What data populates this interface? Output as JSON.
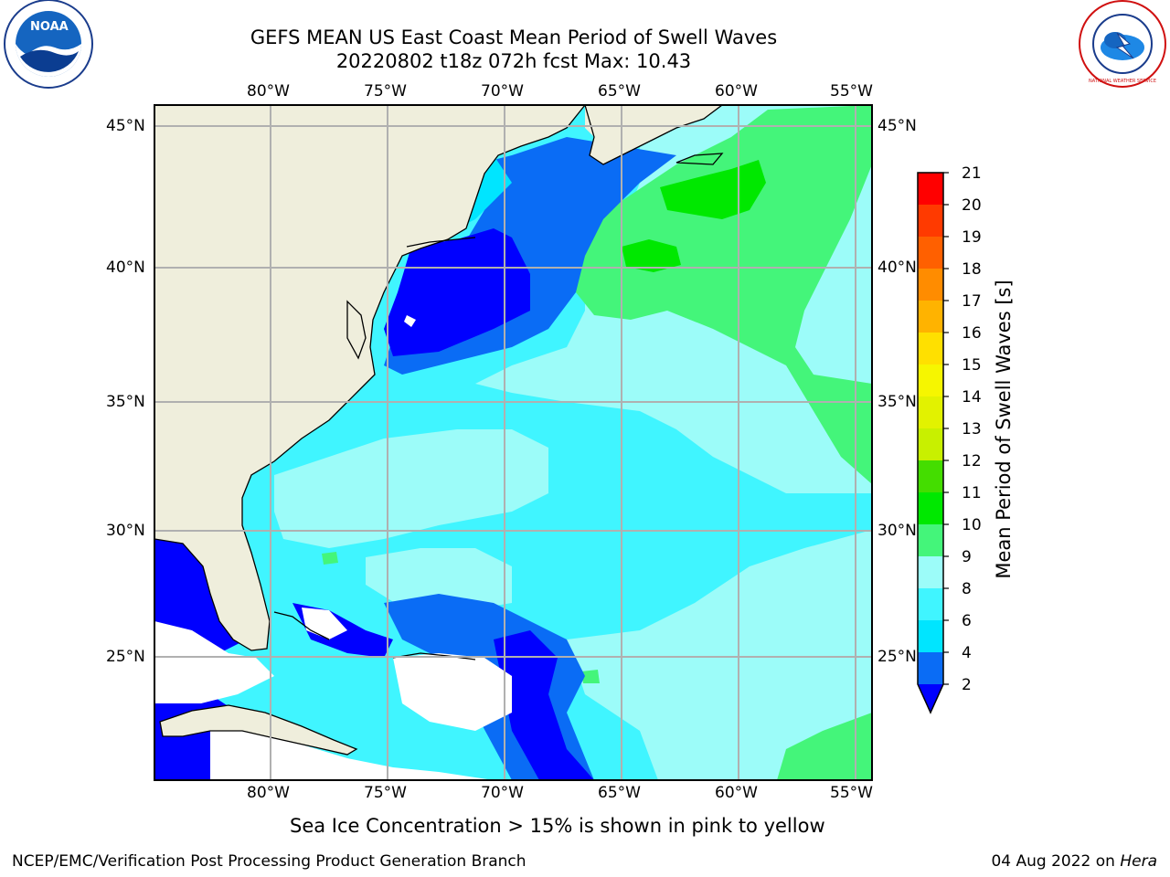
{
  "header": {
    "title_line1": "GEFS MEAN US East Coast Mean Period of Swell Waves",
    "title_line2": "20220802 t18z 072h fcst   Max: 10.43"
  },
  "logos": {
    "left": {
      "name": "noaa-logo",
      "text": "NOAA"
    },
    "right": {
      "name": "nws-logo",
      "text": "NATIONAL WEATHER SERVICE"
    }
  },
  "map": {
    "lon_labels": [
      "80°W",
      "75°W",
      "70°W",
      "65°W",
      "60°W",
      "55°W"
    ],
    "lat_labels": [
      "45°N",
      "40°N",
      "35°N",
      "30°N",
      "25°N"
    ],
    "colors": {
      "land": "#efeedc",
      "missing": "#ffffff",
      "grid": "#b0b0b0",
      "coast": "#000000"
    }
  },
  "colorbar": {
    "label": "Mean Period of Swell Waves [s]",
    "ticks": [
      "21",
      "20",
      "19",
      "18",
      "17",
      "16",
      "15",
      "14",
      "13",
      "12",
      "11",
      "10",
      "9",
      "8",
      "6",
      "4",
      "2"
    ],
    "levels": [
      {
        "range": "2-4",
        "color": "#0a6cf5"
      },
      {
        "range": "4-6",
        "color": "#00e5ff"
      },
      {
        "range": "6-8",
        "color": "#40f5ff"
      },
      {
        "range": "8-9",
        "color": "#9cfcf9"
      },
      {
        "range": "9-10",
        "color": "#44f57a"
      },
      {
        "range": "10-11",
        "color": "#00e800"
      },
      {
        "range": "11-12",
        "color": "#44dd00"
      },
      {
        "range": "12-13",
        "color": "#c8f000"
      },
      {
        "range": "13-14",
        "color": "#e2f200"
      },
      {
        "range": "14-15",
        "color": "#f6f600"
      },
      {
        "range": "15-16",
        "color": "#ffe000"
      },
      {
        "range": "16-17",
        "color": "#ffb300"
      },
      {
        "range": "17-18",
        "color": "#ff8c00"
      },
      {
        "range": "18-19",
        "color": "#ff6000"
      },
      {
        "range": "19-20",
        "color": "#ff3a00"
      },
      {
        "range": "20-21",
        "color": "#ff0000"
      }
    ],
    "under_color": "#0000ff"
  },
  "notes": {
    "sea_ice": "Sea Ice Concentration > 15% is shown in pink to yellow"
  },
  "footer": {
    "left": "NCEP/EMC/Verification Post Processing Product Generation Branch",
    "date": "04 Aug 2022 on ",
    "machine": "Hera"
  }
}
